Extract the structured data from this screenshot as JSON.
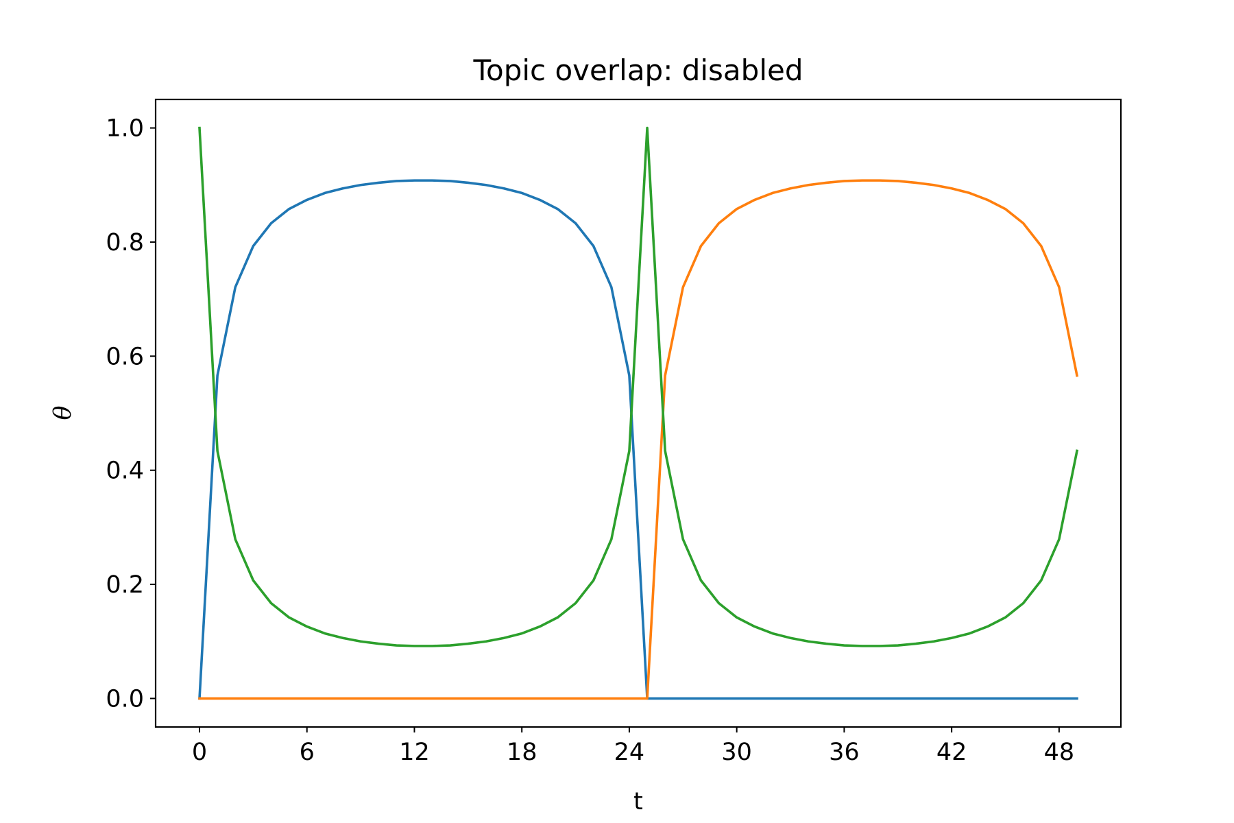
{
  "chart_data": {
    "type": "line",
    "title": "Topic overlap: disabled",
    "xlabel": "t",
    "ylabel": "θ",
    "xlim": [
      -2.45,
      51.45
    ],
    "ylim": [
      -0.05,
      1.05
    ],
    "xticks": [
      0,
      6,
      12,
      18,
      24,
      30,
      36,
      42,
      48
    ],
    "xtick_labels": [
      "0",
      "6",
      "12",
      "18",
      "24",
      "30",
      "36",
      "42",
      "48"
    ],
    "yticks": [
      0.0,
      0.2,
      0.4,
      0.6,
      0.8,
      1.0
    ],
    "ytick_labels": [
      "0.0",
      "0.2",
      "0.4",
      "0.6",
      "0.8",
      "1.0"
    ],
    "grid": false,
    "legend": "none",
    "series": [
      {
        "color": "#1f77b4",
        "x": [
          0,
          1,
          2,
          3,
          4,
          5,
          6,
          7,
          8,
          9,
          10,
          11,
          12,
          13,
          14,
          15,
          16,
          17,
          18,
          19,
          20,
          21,
          22,
          23,
          24,
          25,
          26,
          27,
          28,
          29,
          30,
          31,
          32,
          33,
          34,
          35,
          36,
          37,
          38,
          39,
          40,
          41,
          42,
          43,
          44,
          45,
          46,
          47,
          48,
          49
        ],
        "y": [
          0.0,
          0.566,
          0.721,
          0.793,
          0.833,
          0.858,
          0.874,
          0.886,
          0.894,
          0.9,
          0.904,
          0.907,
          0.908,
          0.908,
          0.907,
          0.904,
          0.9,
          0.894,
          0.886,
          0.874,
          0.858,
          0.833,
          0.793,
          0.721,
          0.566,
          0.0,
          0.0,
          0.0,
          0.0,
          0.0,
          0.0,
          0.0,
          0.0,
          0.0,
          0.0,
          0.0,
          0.0,
          0.0,
          0.0,
          0.0,
          0.0,
          0.0,
          0.0,
          0.0,
          0.0,
          0.0,
          0.0,
          0.0,
          0.0,
          0.0
        ]
      },
      {
        "color": "#ff7f0e",
        "x": [
          0,
          1,
          2,
          3,
          4,
          5,
          6,
          7,
          8,
          9,
          10,
          11,
          12,
          13,
          14,
          15,
          16,
          17,
          18,
          19,
          20,
          21,
          22,
          23,
          24,
          25,
          26,
          27,
          28,
          29,
          30,
          31,
          32,
          33,
          34,
          35,
          36,
          37,
          38,
          39,
          40,
          41,
          42,
          43,
          44,
          45,
          46,
          47,
          48,
          49
        ],
        "y": [
          0.0,
          0.0,
          0.0,
          0.0,
          0.0,
          0.0,
          0.0,
          0.0,
          0.0,
          0.0,
          0.0,
          0.0,
          0.0,
          0.0,
          0.0,
          0.0,
          0.0,
          0.0,
          0.0,
          0.0,
          0.0,
          0.0,
          0.0,
          0.0,
          0.0,
          0.0,
          0.566,
          0.721,
          0.793,
          0.833,
          0.858,
          0.874,
          0.886,
          0.894,
          0.9,
          0.904,
          0.907,
          0.908,
          0.908,
          0.907,
          0.904,
          0.9,
          0.894,
          0.886,
          0.874,
          0.858,
          0.833,
          0.793,
          0.721,
          0.566
        ]
      },
      {
        "color": "#2ca02c",
        "x": [
          0,
          1,
          2,
          3,
          4,
          5,
          6,
          7,
          8,
          9,
          10,
          11,
          12,
          13,
          14,
          15,
          16,
          17,
          18,
          19,
          20,
          21,
          22,
          23,
          24,
          25,
          26,
          27,
          28,
          29,
          30,
          31,
          32,
          33,
          34,
          35,
          36,
          37,
          38,
          39,
          40,
          41,
          42,
          43,
          44,
          45,
          46,
          47,
          48,
          49
        ],
        "y": [
          1.0,
          0.434,
          0.279,
          0.207,
          0.167,
          0.142,
          0.126,
          0.114,
          0.106,
          0.1,
          0.096,
          0.093,
          0.092,
          0.092,
          0.093,
          0.096,
          0.1,
          0.106,
          0.114,
          0.126,
          0.142,
          0.167,
          0.207,
          0.279,
          0.434,
          1.0,
          0.434,
          0.279,
          0.207,
          0.167,
          0.142,
          0.126,
          0.114,
          0.106,
          0.1,
          0.096,
          0.093,
          0.092,
          0.092,
          0.093,
          0.096,
          0.1,
          0.106,
          0.114,
          0.126,
          0.142,
          0.167,
          0.207,
          0.279,
          0.434
        ]
      }
    ]
  }
}
